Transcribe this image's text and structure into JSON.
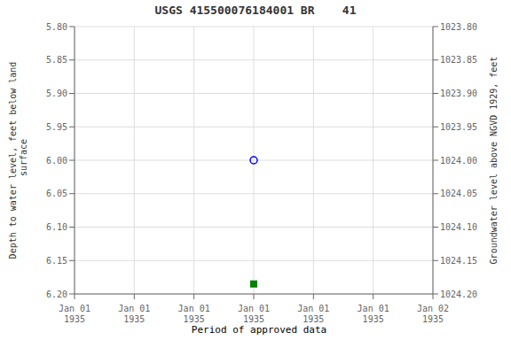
{
  "chart_data": {
    "type": "scatter",
    "title": "USGS 415500076184001 BR    41",
    "ylabel": "Depth to water level, feet below land\n surface",
    "y2label": "Groundwater level above NGVD 1929, feet",
    "categories": [
      "Jan 01\n1935",
      "Jan 01\n1935",
      "Jan 01\n1935",
      "Jan 01\n1935",
      "Jan 01\n1935",
      "Jan 01\n1935",
      "Jan 02\n1935"
    ],
    "series": [
      {
        "color": "blue",
        "marker": "circle",
        "values": [
          null,
          null,
          null,
          6.0,
          null,
          null,
          null
        ]
      },
      {
        "name": "Period of approved data",
        "color": "#008000",
        "marker": "square",
        "values": [
          null,
          null,
          null,
          6.185,
          null,
          null,
          null
        ]
      }
    ],
    "ylim": [
      6.2,
      5.8
    ],
    "yticks": [
      {
        "value": 5.8,
        "label": "5.80"
      },
      5.85,
      {
        "value": 5.9,
        "label": "5.90"
      },
      5.95,
      {
        "value": 6.0,
        "label": "6.00"
      },
      6.05,
      {
        "value": 6.1,
        "label": "6.10"
      },
      6.15,
      {
        "value": 6.2,
        "label": "6.20"
      }
    ],
    "y2lim": [
      1024.2,
      1023.8
    ],
    "y2ticks": [
      {
        "value": 1024.2,
        "label": "1024.20"
      },
      1024.15,
      {
        "value": 1024.1,
        "label": "1024.10"
      },
      1024.05,
      {
        "value": 1024.0,
        "label": "1024.00"
      },
      1023.95,
      {
        "value": 1023.9,
        "label": "1023.90"
      },
      1023.85,
      {
        "value": 1023.8,
        "label": "1023.80"
      }
    ],
    "grid": true
  }
}
